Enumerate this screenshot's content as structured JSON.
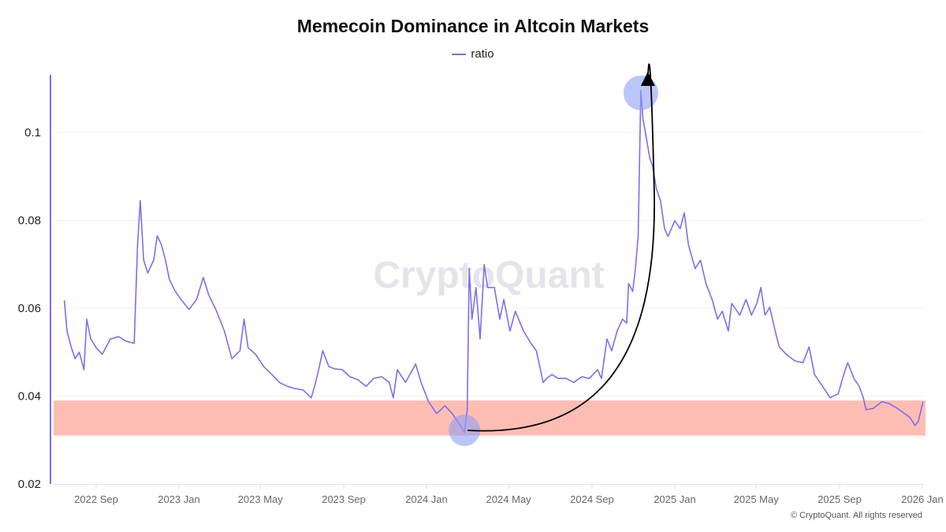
{
  "chart_data": {
    "type": "line",
    "title": "Memecoin Dominance in Altcoin Markets",
    "xlabel": "",
    "ylabel": "",
    "ylim": [
      0.02,
      0.115
    ],
    "xlim": [
      "2022-07-01",
      "2026-01-10"
    ],
    "yticks": [
      "0.02",
      "0.04",
      "0.06",
      "0.08",
      "0.1"
    ],
    "xticks": [
      {
        "label": "2022 Sep",
        "date": "2022-09-01"
      },
      {
        "label": "2023 Jan",
        "date": "2023-01-01"
      },
      {
        "label": "2023 May",
        "date": "2023-05-01"
      },
      {
        "label": "2023 Sep",
        "date": "2023-09-01"
      },
      {
        "label": "2024 Jan",
        "date": "2024-01-01"
      },
      {
        "label": "2024 May",
        "date": "2024-05-01"
      },
      {
        "label": "2024 Sep",
        "date": "2024-09-01"
      },
      {
        "label": "2025 Jan",
        "date": "2025-01-01"
      },
      {
        "label": "2025 May",
        "date": "2025-05-01"
      },
      {
        "label": "2025 Sep",
        "date": "2025-09-01"
      },
      {
        "label": "2026 Jan",
        "date": "2026-01-01"
      }
    ],
    "grid": true,
    "legend_position": "top-center",
    "series": [
      {
        "name": "ratio",
        "color": "#7a6ff0",
        "x": [
          "2022-07-16",
          "2022-07-20",
          "2022-07-26",
          "2022-08-01",
          "2022-08-07",
          "2022-08-14",
          "2022-08-18",
          "2022-08-24",
          "2022-09-01",
          "2022-09-10",
          "2022-09-22",
          "2022-10-04",
          "2022-10-15",
          "2022-10-27",
          "2022-11-01",
          "2022-11-05",
          "2022-11-10",
          "2022-11-16",
          "2022-11-25",
          "2022-11-30",
          "2022-12-06",
          "2022-12-12",
          "2022-12-18",
          "2022-12-26",
          "2023-01-04",
          "2023-01-16",
          "2023-01-27",
          "2023-02-06",
          "2023-02-14",
          "2023-02-25",
          "2023-03-09",
          "2023-03-20",
          "2023-04-01",
          "2023-04-07",
          "2023-04-13",
          "2023-04-24",
          "2023-05-06",
          "2023-05-18",
          "2023-05-29",
          "2023-06-10",
          "2023-06-21",
          "2023-07-03",
          "2023-07-15",
          "2023-07-20",
          "2023-07-26",
          "2023-08-01",
          "2023-08-10",
          "2023-08-18",
          "2023-08-30",
          "2023-09-10",
          "2023-09-22",
          "2023-10-04",
          "2023-10-15",
          "2023-10-27",
          "2023-11-07",
          "2023-11-13",
          "2023-11-19",
          "2023-12-01",
          "2023-12-16",
          "2023-12-24",
          "2024-01-04",
          "2024-01-16",
          "2024-01-28",
          "2024-02-08",
          "2024-02-20",
          "2024-02-26",
          "2024-03-01",
          "2024-03-04",
          "2024-03-08",
          "2024-03-14",
          "2024-03-20",
          "2024-03-26",
          "2024-03-31",
          "2024-04-10",
          "2024-04-18",
          "2024-04-24",
          "2024-05-03",
          "2024-05-11",
          "2024-05-23",
          "2024-06-03",
          "2024-06-11",
          "2024-06-21",
          "2024-06-26",
          "2024-07-04",
          "2024-07-13",
          "2024-07-25",
          "2024-08-05",
          "2024-08-17",
          "2024-08-28",
          "2024-09-09",
          "2024-09-15",
          "2024-09-23",
          "2024-09-30",
          "2024-10-08",
          "2024-10-16",
          "2024-10-22",
          "2024-10-25",
          "2024-10-31",
          "2024-11-04",
          "2024-11-08",
          "2024-11-12",
          "2024-11-15",
          "2024-11-20",
          "2024-11-25",
          "2024-11-29",
          "2024-12-05",
          "2024-12-11",
          "2024-12-17",
          "2024-12-22",
          "2025-01-01",
          "2025-01-09",
          "2025-01-15",
          "2025-01-21",
          "2025-01-31",
          "2025-02-08",
          "2025-02-16",
          "2025-02-25",
          "2025-03-05",
          "2025-03-12",
          "2025-03-21",
          "2025-03-26",
          "2025-04-07",
          "2025-04-16",
          "2025-04-24",
          "2025-05-02",
          "2025-05-08",
          "2025-05-14",
          "2025-05-21",
          "2025-05-29",
          "2025-06-04",
          "2025-06-15",
          "2025-06-27",
          "2025-07-09",
          "2025-07-18",
          "2025-07-26",
          "2025-08-07",
          "2025-08-18",
          "2025-08-30",
          "2025-09-07",
          "2025-09-13",
          "2025-09-22",
          "2025-09-30",
          "2025-10-06",
          "2025-10-10",
          "2025-10-21",
          "2025-11-02",
          "2025-11-13",
          "2025-11-25",
          "2025-12-06",
          "2025-12-14",
          "2025-12-21",
          "2025-12-26",
          "2026-01-02"
        ],
        "values": [
          0.0618,
          0.0548,
          0.0512,
          0.0485,
          0.05,
          0.046,
          0.0575,
          0.053,
          0.051,
          0.0495,
          0.053,
          0.0535,
          0.0525,
          0.052,
          0.0745,
          0.0845,
          0.071,
          0.068,
          0.071,
          0.0765,
          0.0745,
          0.071,
          0.0665,
          0.064,
          0.062,
          0.0597,
          0.062,
          0.067,
          0.063,
          0.0595,
          0.0548,
          0.0485,
          0.0503,
          0.0575,
          0.051,
          0.0495,
          0.0467,
          0.0449,
          0.0431,
          0.0422,
          0.0417,
          0.0414,
          0.0396,
          0.0422,
          0.046,
          0.0503,
          0.0467,
          0.0462,
          0.046,
          0.0444,
          0.0437,
          0.0422,
          0.044,
          0.0444,
          0.0431,
          0.0396,
          0.046,
          0.0431,
          0.0473,
          0.0431,
          0.0387,
          0.036,
          0.0378,
          0.036,
          0.0333,
          0.0317,
          0.0369,
          0.069,
          0.0575,
          0.0647,
          0.053,
          0.0699,
          0.0647,
          0.0647,
          0.0575,
          0.062,
          0.0548,
          0.0593,
          0.0548,
          0.052,
          0.0503,
          0.0431,
          0.044,
          0.0449,
          0.044,
          0.044,
          0.0431,
          0.0444,
          0.044,
          0.046,
          0.044,
          0.053,
          0.0503,
          0.0548,
          0.0575,
          0.0566,
          0.0656,
          0.0638,
          0.069,
          0.0763,
          0.1095,
          0.1032,
          0.0988,
          0.0943,
          0.0925,
          0.0871,
          0.0844,
          0.0781,
          0.0763,
          0.0799,
          0.0781,
          0.0817,
          0.0745,
          0.069,
          0.0709,
          0.0656,
          0.062,
          0.0575,
          0.0593,
          0.0548,
          0.0611,
          0.0584,
          0.062,
          0.0584,
          0.0611,
          0.0647,
          0.0584,
          0.0602,
          0.0548,
          0.0512,
          0.0494,
          0.048,
          0.0476,
          0.0512,
          0.0449,
          0.0422,
          0.0396,
          0.0405,
          0.0449,
          0.0476,
          0.044,
          0.0422,
          0.0396,
          0.0369,
          0.0372,
          0.0387,
          0.0383,
          0.0372,
          0.036,
          0.0351,
          0.0333,
          0.0342,
          0.0387
        ]
      }
    ],
    "annotations": {
      "band": {
        "y_from": 0.031,
        "y_to": 0.039,
        "color": "#fdbdb3"
      },
      "circles": [
        {
          "date": "2024-02-26",
          "value": 0.0322,
          "color": "#8f9ff5"
        },
        {
          "date": "2024-11-12",
          "value": 0.109,
          "color": "#8f9ff5"
        }
      ],
      "arrow": {
        "from_date": "2024-02-26",
        "to_date": "2024-11-20",
        "color": "#000000"
      }
    }
  },
  "watermark": "CryptoQuant",
  "copyright": "© CryptoQuant. All rights reserved"
}
